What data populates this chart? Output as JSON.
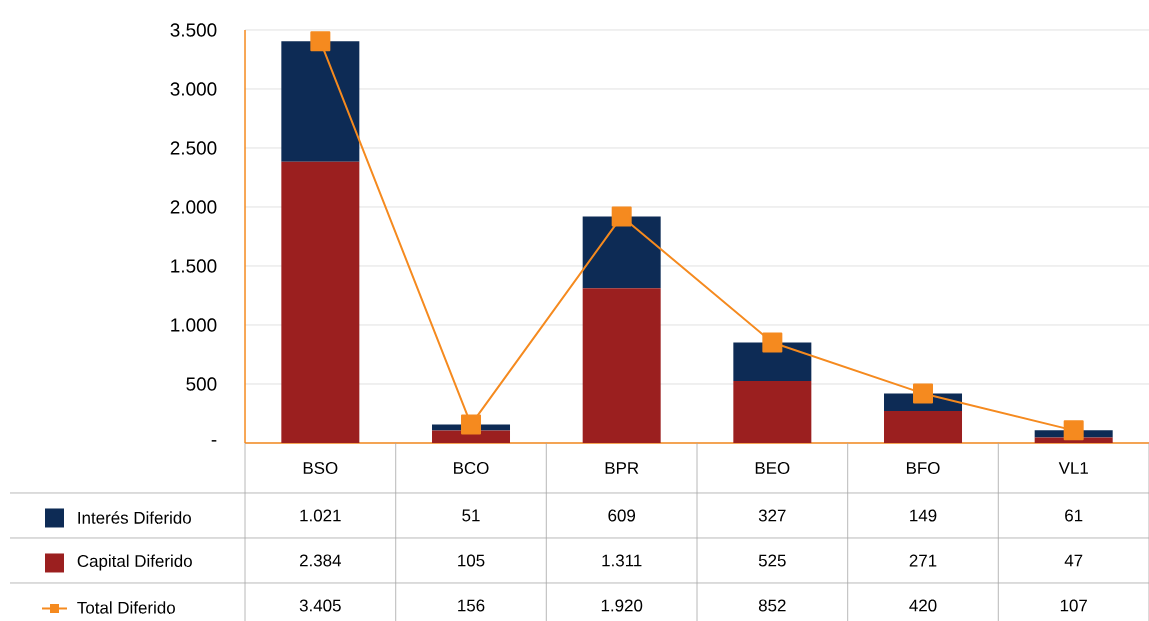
{
  "chart_data": {
    "type": "bar",
    "stacked": true,
    "categories": [
      "BSO",
      "BCO",
      "BPR",
      "BEO",
      "BFO",
      "VL1"
    ],
    "series": [
      {
        "name": "Capital Diferido",
        "color": "#9b1f1f",
        "values": [
          2384,
          105,
          1311,
          525,
          271,
          47
        ],
        "value_labels": [
          "2.384",
          "105",
          "1.311",
          "525",
          "271",
          "47"
        ]
      },
      {
        "name": "Interés Diferido",
        "color": "#0d2b55",
        "values": [
          1021,
          51,
          609,
          327,
          149,
          61
        ],
        "value_labels": [
          "1.021",
          "51",
          "609",
          "327",
          "149",
          "61"
        ]
      },
      {
        "name": "Total Diferido",
        "type": "line",
        "marker": "square",
        "color": "#f58a1f",
        "values": [
          3405,
          156,
          1920,
          852,
          420,
          107
        ],
        "value_labels": [
          "3.405",
          "156",
          "1.920",
          "852",
          "420",
          "107"
        ]
      }
    ],
    "ylim": [
      0,
      3500
    ],
    "yticks": [
      {
        "value": 0,
        "label": "-"
      },
      500,
      {
        "value": 1000,
        "label": "1.000"
      },
      {
        "value": 1500,
        "label": "1.500"
      },
      {
        "value": 2000,
        "label": "2.000"
      },
      {
        "value": 2500,
        "label": "2.500"
      },
      {
        "value": 3000,
        "label": "3.000"
      },
      {
        "value": 3500,
        "label": "3.500"
      }
    ],
    "grid": "y",
    "legend": "bottom"
  }
}
